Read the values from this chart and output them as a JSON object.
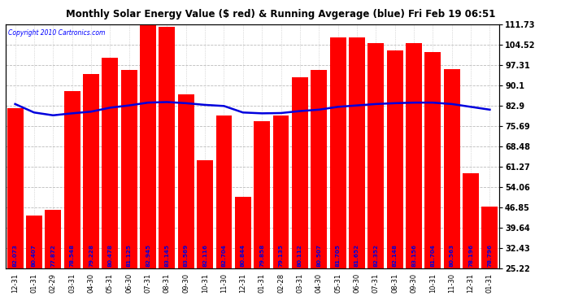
{
  "title": "Monthly Solar Energy Value ($ red) & Running Avgerage (blue) Fri Feb 19 06:51",
  "copyright": "Copyright 2010 Cartronics.com",
  "categories": [
    "12-31",
    "01-31",
    "02-29",
    "03-31",
    "04-30",
    "05-31",
    "06-30",
    "07-31",
    "08-31",
    "09-30",
    "10-31",
    "11-30",
    "12-31",
    "01-31",
    "02-28",
    "03-31",
    "04-30",
    "05-31",
    "06-30",
    "07-31",
    "08-31",
    "09-30",
    "10-31",
    "11-30",
    "12-31",
    "01-31"
  ],
  "bar_heights": [
    82.073,
    44.0,
    46.0,
    88.0,
    94.0,
    100.0,
    95.5,
    111.73,
    111.0,
    87.0,
    63.5,
    79.5,
    50.5,
    77.5,
    79.5,
    93.0,
    95.5,
    107.0,
    107.0,
    105.0,
    102.5,
    105.0,
    102.0,
    96.0,
    59.0,
    47.0
  ],
  "bar_labels": [
    "82.073",
    "80.407",
    "77.872",
    "78.548",
    "79.228",
    "80.478",
    "81.125",
    "82.945",
    "83.145",
    "83.569",
    "82.116",
    "82.704",
    "80.844",
    "79.858",
    "79.135",
    "80.112",
    "80.507",
    "81.705",
    "81.652",
    "82.352",
    "82.148",
    "83.156",
    "81.704",
    "80.563",
    "78.196",
    "78.796"
  ],
  "running_avg": [
    83.5,
    80.5,
    79.5,
    80.2,
    80.8,
    82.2,
    83.0,
    84.0,
    84.2,
    83.8,
    83.2,
    82.8,
    80.5,
    80.2,
    80.3,
    81.0,
    81.5,
    82.5,
    83.0,
    83.5,
    83.8,
    84.0,
    84.0,
    83.5,
    82.5,
    81.5
  ],
  "bar_color": "#FF0000",
  "line_color": "#0000DD",
  "background_color": "#FFFFFF",
  "grid_color": "#BBBBBB",
  "label_color": "#0000DD",
  "ymin": 25.22,
  "ymax": 111.73,
  "yticks": [
    25.22,
    32.43,
    39.64,
    46.85,
    54.06,
    61.27,
    68.48,
    75.69,
    82.9,
    90.1,
    97.31,
    104.52,
    111.73
  ]
}
